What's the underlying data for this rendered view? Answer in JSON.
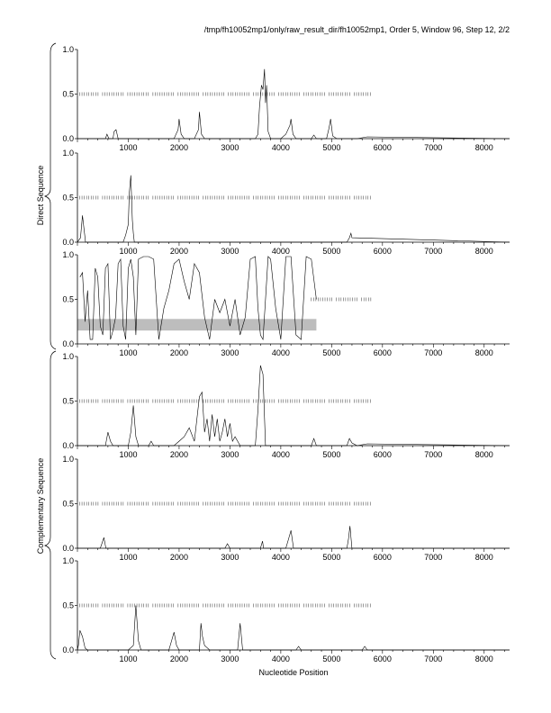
{
  "title": "/tmp/fh10052mp1/only/raw_result_dir/fh10052mp1, Order 5, Window 96, Step 12, 2/2",
  "xlabel": "Nucleotide Position",
  "group_labels": {
    "direct": "Direct Sequence",
    "complementary": "Complementary Sequence"
  },
  "x_ticks": [
    "1000",
    "2000",
    "3000",
    "4000",
    "5000",
    "6000",
    "7000",
    "8000"
  ],
  "y_ticks": [
    "0.0",
    "0.5",
    "1.0"
  ],
  "chart_data": [
    {
      "type": "line",
      "panel": "direct-1",
      "xlim": [
        0,
        8500
      ],
      "ylim": [
        0,
        1
      ],
      "series": [
        {
          "x": [
            0,
            200,
            400,
            550,
            580,
            620,
            700,
            720,
            760,
            800,
            1000,
            1500,
            1900,
            1980,
            2000,
            2040,
            2100,
            2300,
            2380,
            2400,
            2440,
            2500,
            3000,
            3500,
            3550,
            3580,
            3620,
            3650,
            3680,
            3700,
            3720,
            3750,
            3800,
            4000,
            4100,
            4180,
            4200,
            4240,
            4300,
            4600,
            4650,
            4700,
            4900,
            4950,
            4980,
            5020,
            5100,
            5500,
            5700,
            8500
          ],
          "y": [
            0,
            0,
            0,
            0,
            0.05,
            0,
            0,
            0.08,
            0.1,
            0,
            0,
            0,
            0,
            0.1,
            0.22,
            0.05,
            0,
            0,
            0.1,
            0.3,
            0.05,
            0,
            0,
            0,
            0.05,
            0.35,
            0.6,
            0.55,
            0.78,
            0.4,
            0.6,
            0.08,
            0,
            0,
            0.05,
            0.15,
            0.22,
            0.05,
            0,
            0,
            0.04,
            0,
            0,
            0.12,
            0.22,
            0.03,
            0,
            0,
            0.02,
            0
          ]
        }
      ],
      "marks": [
        {
          "y": 0.5,
          "from": 0,
          "to": 5800
        }
      ]
    },
    {
      "type": "line",
      "panel": "direct-2",
      "xlim": [
        0,
        8500
      ],
      "ylim": [
        0,
        1
      ],
      "series": [
        {
          "x": [
            0,
            60,
            100,
            130,
            160,
            200,
            500,
            900,
            950,
            1000,
            1020,
            1050,
            1080,
            1100,
            1120,
            1200,
            1500,
            5300,
            5350,
            5380,
            5400,
            8500
          ],
          "y": [
            0,
            0.05,
            0.3,
            0.15,
            0,
            0,
            0,
            0,
            0.08,
            0.2,
            0.55,
            0.75,
            0.25,
            0.1,
            0,
            0,
            0,
            0,
            0.05,
            0.1,
            0.05,
            0
          ]
        }
      ],
      "marks": [
        {
          "y": 0.5,
          "from": 0,
          "to": 5800
        }
      ]
    },
    {
      "type": "line",
      "panel": "direct-3",
      "xlim": [
        0,
        8500
      ],
      "ylim": [
        0,
        1
      ],
      "series": [
        {
          "x": [
            50,
            100,
            150,
            200,
            250,
            300,
            350,
            400,
            450,
            500,
            550,
            600,
            650,
            700,
            750,
            800,
            850,
            900,
            950,
            1000,
            1050,
            1100,
            1150,
            1200,
            1300,
            1400,
            1500,
            1600,
            1700,
            1800,
            1900,
            2000,
            2100,
            2200,
            2300,
            2400,
            2500,
            2600,
            2700,
            2800,
            2900,
            3000,
            3100,
            3200,
            3300,
            3400,
            3500,
            3550,
            3600,
            3650,
            3700,
            3750,
            3800,
            3900,
            4000,
            4100,
            4200,
            4300,
            4400,
            4500,
            4600,
            4700
          ],
          "y": [
            0.75,
            0.8,
            0.25,
            0.6,
            0.05,
            0.05,
            0.85,
            0.75,
            0.2,
            0.1,
            0.85,
            0.9,
            0.05,
            0.15,
            0.3,
            0.9,
            0.95,
            0.2,
            0.05,
            0.85,
            0.95,
            0.75,
            0.1,
            0.95,
            0.98,
            0.98,
            0.95,
            0.05,
            0.4,
            0.6,
            0.9,
            0.95,
            0.7,
            0.5,
            0.9,
            0.8,
            0.3,
            0.05,
            0.5,
            0.35,
            0.5,
            0.2,
            0.5,
            0.1,
            0.3,
            0.95,
            0.98,
            0.4,
            0.1,
            0.05,
            0.5,
            0.98,
            0.95,
            0.4,
            0.05,
            0.98,
            0.98,
            0.1,
            0.05,
            0.98,
            0.95,
            0.5
          ]
        }
      ],
      "marks": [
        {
          "y": 0.5,
          "from": 4600,
          "to": 5800
        }
      ],
      "band": {
        "x0": 0,
        "x1": 4700,
        "y0": 0.15,
        "y1": 0.28
      }
    },
    {
      "type": "line",
      "panel": "complementary-1",
      "xlim": [
        0,
        8500
      ],
      "ylim": [
        0,
        1
      ],
      "series": [
        {
          "x": [
            0,
            500,
            550,
            600,
            650,
            700,
            1000,
            1050,
            1100,
            1150,
            1200,
            1300,
            1400,
            1450,
            1500,
            1900,
            2000,
            2100,
            2200,
            2300,
            2400,
            2450,
            2500,
            2550,
            2600,
            2650,
            2700,
            2750,
            2800,
            2850,
            2900,
            2950,
            3000,
            3050,
            3100,
            3200,
            3500,
            3550,
            3600,
            3650,
            3700,
            3800,
            4600,
            4650,
            4700,
            5300,
            5350,
            5400,
            5500,
            5700,
            8500
          ],
          "y": [
            0,
            0,
            0,
            0.15,
            0.05,
            0,
            0,
            0.15,
            0.45,
            0.1,
            0,
            0,
            0,
            0.05,
            0,
            0,
            0.05,
            0.1,
            0.2,
            0.05,
            0.55,
            0.6,
            0.15,
            0.3,
            0.05,
            0.35,
            0.1,
            0.3,
            0.05,
            0.15,
            0.3,
            0.1,
            0.25,
            0.05,
            0.1,
            0,
            0,
            0.4,
            0.9,
            0.8,
            0,
            0,
            0,
            0.08,
            0,
            0,
            0.08,
            0.03,
            0,
            0.02,
            0
          ]
        }
      ],
      "marks": [
        {
          "y": 0.5,
          "from": 0,
          "to": 5800
        }
      ]
    },
    {
      "type": "line",
      "panel": "complementary-2",
      "xlim": [
        0,
        8500
      ],
      "ylim": [
        0,
        1
      ],
      "series": [
        {
          "x": [
            0,
            450,
            480,
            520,
            560,
            1000,
            2900,
            2950,
            3000,
            3600,
            3640,
            3660,
            4100,
            4150,
            4200,
            4250,
            5300,
            5330,
            5360,
            5400,
            8500
          ],
          "y": [
            0,
            0,
            0.05,
            0.12,
            0,
            0,
            0,
            0.05,
            0,
            0,
            0.08,
            0,
            0,
            0.1,
            0.2,
            0,
            0,
            0.1,
            0.25,
            0,
            0
          ]
        }
      ],
      "marks": [
        {
          "y": 0.5,
          "from": 0,
          "to": 5800
        }
      ]
    },
    {
      "type": "line",
      "panel": "complementary-3",
      "xlim": [
        0,
        8500
      ],
      "ylim": [
        0,
        1
      ],
      "series": [
        {
          "x": [
            0,
            20,
            50,
            100,
            150,
            200,
            1000,
            1100,
            1150,
            1200,
            1250,
            1800,
            1850,
            1900,
            1950,
            2000,
            2400,
            2430,
            2460,
            2500,
            2600,
            3150,
            3200,
            3250,
            4300,
            4350,
            4400,
            5600,
            5650,
            5700,
            8500
          ],
          "y": [
            0,
            0.05,
            0.22,
            0.15,
            0.02,
            0,
            0,
            0.05,
            0.5,
            0.1,
            0,
            0,
            0.1,
            0.2,
            0.05,
            0,
            0,
            0.3,
            0.15,
            0.05,
            0,
            0,
            0.3,
            0,
            0,
            0.04,
            0,
            0,
            0.04,
            0,
            0
          ]
        }
      ],
      "marks": [
        {
          "y": 0.5,
          "from": 0,
          "to": 5800
        }
      ]
    }
  ]
}
